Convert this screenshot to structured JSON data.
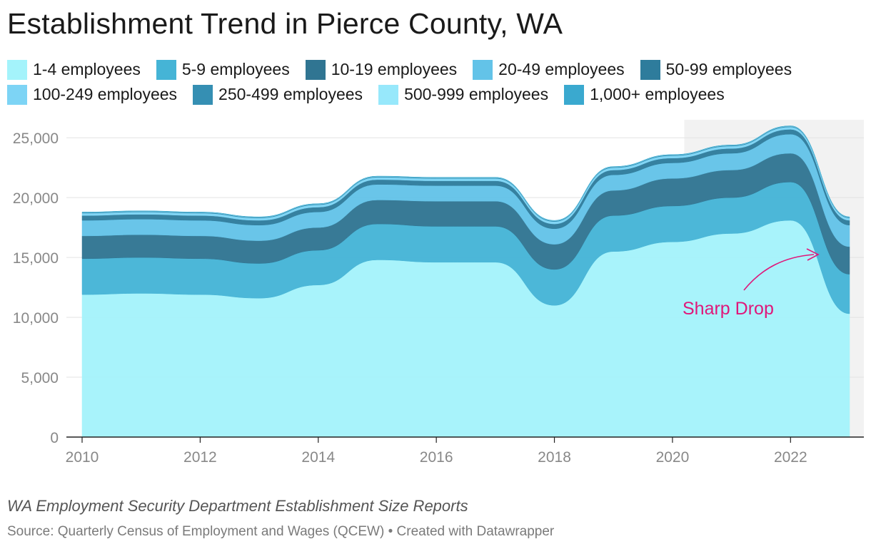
{
  "title": "Establishment Trend in Pierce County, WA",
  "caption": "WA Employment Security Department Establishment Size Reports",
  "source": "Source: Quarterly Census of Employment and Wages (QCEW) • Created with Datawrapper",
  "legend_rows": [
    [
      {
        "label": "1-4 employees",
        "color": "#a4f3fb"
      },
      {
        "label": "5-9 employees",
        "color": "#45b4d6"
      },
      {
        "label": "10-19 employees",
        "color": "#307592"
      },
      {
        "label": "20-49 employees",
        "color": "#63c3e8"
      },
      {
        "label": "50-99 employees",
        "color": "#2e7c9c"
      }
    ],
    [
      {
        "label": "100-249 employees",
        "color": "#7dd4f5"
      },
      {
        "label": "250-499 employees",
        "color": "#358fb3"
      },
      {
        "label": "500-999 employees",
        "color": "#97e8fb"
      },
      {
        "label": "1,000+ employees",
        "color": "#3aa9cf"
      }
    ]
  ],
  "annotation": {
    "text": "Sharp Drop",
    "color": "#e0177a"
  },
  "chart_data": {
    "type": "area",
    "stacked": true,
    "x": [
      2010,
      2011,
      2012,
      2013,
      2014,
      2015,
      2016,
      2017,
      2018,
      2019,
      2020,
      2021,
      2022,
      2023
    ],
    "x_ticks": [
      "2010",
      "2012",
      "2014",
      "2016",
      "2018",
      "2020",
      "2022"
    ],
    "y_ticks": [
      "0",
      "5,000",
      "10,000",
      "15,000",
      "20,000",
      "25,000"
    ],
    "ylim": [
      0,
      26500
    ],
    "grid": true,
    "legend_position": "top",
    "highlight_range": [
      2020.2,
      2023.25
    ],
    "series": [
      {
        "name": "1-4 employees",
        "color": "#a4f3fb",
        "values": [
          11900,
          12000,
          11900,
          11600,
          12700,
          14800,
          14600,
          14600,
          11000,
          15500,
          16300,
          17000,
          18100,
          10300
        ]
      },
      {
        "name": "5-9 employees",
        "color": "#45b4d6",
        "values": [
          3000,
          3000,
          3000,
          2900,
          2900,
          3000,
          3000,
          3000,
          3000,
          3000,
          3000,
          3000,
          3200,
          3300
        ]
      },
      {
        "name": "10-19 employees",
        "color": "#307592",
        "values": [
          1900,
          1900,
          1900,
          1900,
          1900,
          2000,
          2100,
          2100,
          2100,
          2100,
          2300,
          2300,
          2400,
          2300
        ]
      },
      {
        "name": "20-49 employees",
        "color": "#63c3e8",
        "values": [
          1300,
          1300,
          1300,
          1300,
          1300,
          1300,
          1300,
          1300,
          1300,
          1300,
          1300,
          1400,
          1600,
          1800
        ]
      },
      {
        "name": "50-99 employees",
        "color": "#2e7c9c",
        "values": [
          400,
          400,
          400,
          400,
          400,
          400,
          400,
          400,
          400,
          400,
          400,
          400,
          400,
          400
        ]
      },
      {
        "name": "100-249 employees",
        "color": "#7dd4f5",
        "values": [
          200,
          200,
          200,
          200,
          200,
          200,
          200,
          200,
          200,
          200,
          200,
          200,
          200,
          200
        ]
      },
      {
        "name": "250-499 employees",
        "color": "#358fb3",
        "values": [
          60,
          60,
          60,
          60,
          60,
          60,
          60,
          60,
          60,
          60,
          60,
          60,
          60,
          60
        ]
      },
      {
        "name": "500-999 employees",
        "color": "#97e8fb",
        "values": [
          20,
          20,
          20,
          20,
          20,
          20,
          20,
          20,
          20,
          20,
          20,
          20,
          20,
          20
        ]
      },
      {
        "name": "1,000+ employees",
        "color": "#3aa9cf",
        "values": [
          15,
          15,
          15,
          15,
          15,
          15,
          15,
          15,
          15,
          15,
          15,
          15,
          15,
          15
        ]
      }
    ]
  }
}
